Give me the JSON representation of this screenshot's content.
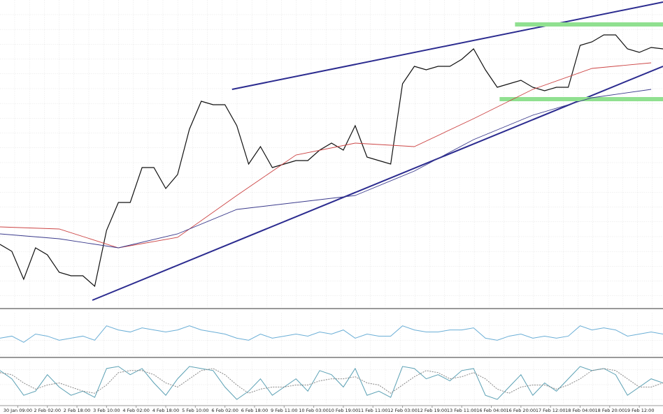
{
  "chart_data": {
    "type": "line",
    "xlim": [
      0,
      56
    ],
    "ylim": [
      0,
      440
    ],
    "x": [
      0,
      1,
      2,
      3,
      4,
      5,
      6,
      7,
      8,
      9,
      10,
      11,
      12,
      13,
      14,
      15,
      16,
      17,
      18,
      19,
      20,
      21,
      22,
      23,
      24,
      25,
      26,
      27,
      28,
      29,
      30,
      31,
      32,
      33,
      34,
      35,
      36,
      37,
      38,
      39,
      40,
      41,
      42,
      43,
      44,
      45,
      46,
      47,
      48,
      49,
      50,
      51,
      52,
      53,
      54,
      55,
      56
    ],
    "xticks": [
      {
        "value": 1.5,
        "label": "30 Jan 09:00"
      },
      {
        "value": 4,
        "label": "2 Feb 02:00"
      },
      {
        "value": 6.5,
        "label": "2 Feb 18:00"
      },
      {
        "value": 9,
        "label": "3 Feb 10:00"
      },
      {
        "value": 11.5,
        "label": "4 Feb 02:00"
      },
      {
        "value": 14,
        "label": "4 Feb 18:00"
      },
      {
        "value": 16.5,
        "label": "5 Feb 10:00"
      },
      {
        "value": 19,
        "label": "6 Feb 02:00"
      },
      {
        "value": 21.5,
        "label": "6 Feb 18:00"
      },
      {
        "value": 24,
        "label": "9 Feb 11:00"
      },
      {
        "value": 26.5,
        "label": "10 Feb 03:00"
      },
      {
        "value": 29,
        "label": "10 Feb 19:00"
      },
      {
        "value": 31.5,
        "label": "11 Feb 11:00"
      },
      {
        "value": 34,
        "label": "12 Feb 03:00"
      },
      {
        "value": 36.5,
        "label": "12 Feb 19:00"
      },
      {
        "value": 39,
        "label": "13 Feb 11:00"
      },
      {
        "value": 41.5,
        "label": "16 Feb 04:00"
      },
      {
        "value": 44,
        "label": "16 Feb 20:00"
      },
      {
        "value": 46.5,
        "label": "17 Feb 12:00"
      },
      {
        "value": 49,
        "label": "18 Feb 04:00"
      },
      {
        "value": 51.5,
        "label": "18 Feb 20:00"
      },
      {
        "value": 54,
        "label": "19 Feb 12:00"
      }
    ],
    "series": [
      {
        "color": "#111111",
        "values": [
          90,
          80,
          40,
          85,
          75,
          50,
          45,
          45,
          30,
          110,
          150,
          150,
          200,
          200,
          170,
          190,
          255,
          295,
          290,
          290,
          260,
          205,
          230,
          200,
          205,
          210,
          210,
          225,
          235,
          225,
          260,
          215,
          210,
          205,
          320,
          345,
          340,
          345,
          345,
          355,
          370,
          340,
          315,
          320,
          325,
          315,
          310,
          315,
          315,
          375,
          380,
          390,
          390,
          370,
          365,
          372,
          370
        ]
      },
      {
        "color": "#cc4444",
        "x": [
          0,
          5,
          10,
          15,
          20,
          25,
          30,
          35,
          40,
          45,
          50,
          55
        ],
        "values": [
          115,
          112,
          85,
          100,
          160,
          218,
          235,
          230,
          270,
          312,
          342,
          350
        ]
      },
      {
        "color": "#3a3a8c",
        "x": [
          0,
          5,
          10,
          15,
          20,
          25,
          30,
          35,
          40,
          45,
          50,
          55
        ],
        "values": [
          105,
          98,
          85,
          105,
          140,
          150,
          160,
          195,
          240,
          275,
          300,
          312
        ]
      }
    ],
    "lines": [
      {
        "color": "#2b2b8f",
        "x": [
          7.8,
          56
        ],
        "y": [
          10,
          345
        ]
      },
      {
        "color": "#2b2b8f",
        "x": [
          19.6,
          56
        ],
        "y": [
          312,
          437
        ]
      },
      {
        "color": "#90e090",
        "x": [
          43.5,
          56
        ],
        "y": [
          405,
          405
        ]
      },
      {
        "color": "#90e090",
        "x": [
          42.2,
          56
        ],
        "y": [
          298,
          298
        ]
      }
    ],
    "panes": [
      {
        "ylim": [
          0,
          100
        ],
        "series": [
          {
            "color": "#6aaed6",
            "values": [
              40,
              45,
              30,
              50,
              45,
              35,
              40,
              45,
              35,
              70,
              60,
              55,
              65,
              60,
              55,
              60,
              70,
              60,
              55,
              50,
              40,
              35,
              50,
              40,
              45,
              50,
              45,
              55,
              50,
              60,
              40,
              50,
              45,
              45,
              70,
              60,
              55,
              55,
              60,
              60,
              65,
              40,
              35,
              45,
              50,
              40,
              45,
              40,
              45,
              70,
              60,
              65,
              60,
              45,
              50,
              55,
              50
            ]
          }
        ]
      },
      {
        "ylim": [
          0,
          100
        ],
        "series": [
          {
            "color": "#5aa0b4",
            "values": [
              80,
              60,
              20,
              30,
              70,
              40,
              20,
              30,
              15,
              85,
              90,
              70,
              85,
              50,
              20,
              60,
              90,
              85,
              80,
              40,
              10,
              30,
              60,
              20,
              40,
              60,
              30,
              80,
              70,
              40,
              85,
              20,
              30,
              15,
              90,
              85,
              60,
              70,
              55,
              80,
              85,
              20,
              10,
              40,
              70,
              20,
              50,
              30,
              60,
              90,
              80,
              85,
              70,
              20,
              40,
              60,
              50
            ]
          },
          {
            "color": "#888888",
            "dashed": true,
            "values": [
              75,
              70,
              50,
              35,
              45,
              50,
              40,
              30,
              25,
              45,
              75,
              80,
              80,
              70,
              50,
              40,
              60,
              80,
              85,
              70,
              45,
              25,
              35,
              40,
              40,
              45,
              45,
              55,
              60,
              60,
              65,
              50,
              45,
              25,
              45,
              65,
              80,
              75,
              60,
              65,
              75,
              60,
              35,
              25,
              40,
              45,
              45,
              35,
              45,
              60,
              80,
              85,
              80,
              60,
              40,
              40,
              50
            ]
          }
        ]
      }
    ]
  }
}
